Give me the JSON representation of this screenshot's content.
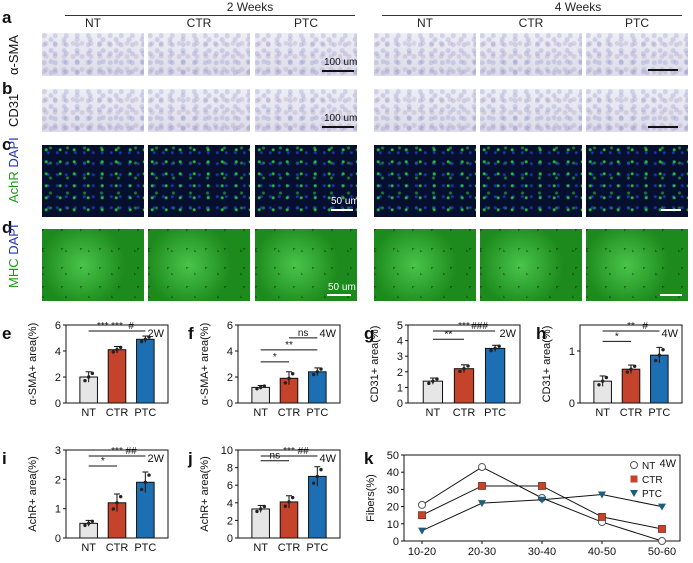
{
  "figure": {
    "panel_letters": [
      "a",
      "b",
      "c",
      "d",
      "e",
      "f",
      "g",
      "h",
      "i",
      "j",
      "k"
    ],
    "time_headers": [
      "2 Weeks",
      "4 Weeks"
    ],
    "group_headers": [
      "NT",
      "CTR",
      "PTC",
      "NT",
      "CTR",
      "PTC"
    ],
    "row_labels": {
      "a": "α-SMA",
      "b": "CD31",
      "c_green": "AchR",
      "c_blue": "DAPI",
      "d_green": "MHC",
      "d_blue": "DAPI"
    },
    "scale_bars": [
      "100 um",
      "100 um",
      "50 um",
      "50 um"
    ]
  },
  "chart_data": [
    {
      "panel": "e",
      "type": "bar",
      "tag": "2W",
      "ylabel": "α-SMA+ area(%)",
      "categories": [
        "NT",
        "CTR",
        "PTC"
      ],
      "values": [
        2.0,
        4.1,
        4.9
      ],
      "errors": [
        0.4,
        0.25,
        0.25
      ],
      "ylim": [
        0,
        6
      ],
      "yticks": [
        "0",
        "2",
        "4",
        "6"
      ],
      "colors": [
        "#e6e6e6",
        "#c4432a",
        "#1d6fb3"
      ],
      "significance": [
        {
          "from": 0,
          "to": 1,
          "label": "***"
        },
        {
          "from": 0,
          "to": 2,
          "label": "***"
        },
        {
          "from": 1,
          "to": 2,
          "label": "#"
        }
      ]
    },
    {
      "panel": "f",
      "type": "bar",
      "tag": "4W",
      "ylabel": "α-SMA+ area(%)",
      "categories": [
        "NT",
        "CTR",
        "PTC"
      ],
      "values": [
        1.2,
        1.9,
        2.4
      ],
      "errors": [
        0.15,
        0.5,
        0.3
      ],
      "ylim": [
        0,
        6
      ],
      "yticks": [
        "0",
        "2",
        "4",
        "6"
      ],
      "colors": [
        "#e6e6e6",
        "#c4432a",
        "#1d6fb3"
      ],
      "significance": [
        {
          "from": 0,
          "to": 1,
          "label": "*"
        },
        {
          "from": 0,
          "to": 2,
          "label": "**"
        },
        {
          "from": 1,
          "to": 2,
          "label": "ns"
        }
      ]
    },
    {
      "panel": "g",
      "type": "bar",
      "tag": "2W",
      "ylabel": "CD31+ area(%)",
      "categories": [
        "NT",
        "CTR",
        "PTC"
      ],
      "values": [
        1.4,
        2.2,
        3.5
      ],
      "errors": [
        0.2,
        0.25,
        0.2
      ],
      "ylim": [
        0,
        5
      ],
      "yticks": [
        "0",
        "1",
        "2",
        "3",
        "4",
        "5"
      ],
      "colors": [
        "#e6e6e6",
        "#c4432a",
        "#1d6fb3"
      ],
      "significance": [
        {
          "from": 0,
          "to": 1,
          "label": "**"
        },
        {
          "from": 0,
          "to": 2,
          "label": "***"
        },
        {
          "from": 1,
          "to": 2,
          "label": "###"
        }
      ]
    },
    {
      "panel": "h",
      "type": "bar",
      "tag": "4W",
      "ylabel": "CD31+ area(%)",
      "categories": [
        "NT",
        "CTR",
        "PTC"
      ],
      "values": [
        0.42,
        0.65,
        0.92
      ],
      "errors": [
        0.1,
        0.08,
        0.15
      ],
      "ylim": [
        0,
        1.5
      ],
      "yticks": [
        "0",
        "1"
      ],
      "colors": [
        "#e6e6e6",
        "#c4432a",
        "#1d6fb3"
      ],
      "significance": [
        {
          "from": 0,
          "to": 1,
          "label": "*"
        },
        {
          "from": 0,
          "to": 2,
          "label": "**"
        },
        {
          "from": 1,
          "to": 2,
          "label": "#"
        }
      ]
    },
    {
      "panel": "i",
      "type": "bar",
      "tag": "2W",
      "ylabel": "AchR+ area(%)",
      "categories": [
        "NT",
        "CTR",
        "PTC"
      ],
      "values": [
        0.5,
        1.2,
        1.9
      ],
      "errors": [
        0.1,
        0.3,
        0.35
      ],
      "ylim": [
        0,
        3
      ],
      "yticks": [
        "0",
        "1",
        "2",
        "3"
      ],
      "colors": [
        "#e6e6e6",
        "#c4432a",
        "#1d6fb3"
      ],
      "significance": [
        {
          "from": 0,
          "to": 1,
          "label": "*"
        },
        {
          "from": 0,
          "to": 2,
          "label": "***"
        },
        {
          "from": 1,
          "to": 2,
          "label": "##"
        }
      ]
    },
    {
      "panel": "j",
      "type": "bar",
      "tag": "4W",
      "ylabel": "AchR+ area(%)",
      "categories": [
        "NT",
        "CTR",
        "PTC"
      ],
      "values": [
        3.3,
        4.1,
        7.0
      ],
      "errors": [
        0.4,
        0.7,
        1.1
      ],
      "ylim": [
        0,
        10
      ],
      "yticks": [
        "0",
        "2",
        "4",
        "6",
        "8",
        "10"
      ],
      "colors": [
        "#e6e6e6",
        "#c4432a",
        "#1d6fb3"
      ],
      "significance": [
        {
          "from": 0,
          "to": 1,
          "label": "ns"
        },
        {
          "from": 0,
          "to": 2,
          "label": "***"
        },
        {
          "from": 1,
          "to": 2,
          "label": "##"
        }
      ]
    },
    {
      "panel": "k",
      "type": "line",
      "tag": "4W",
      "ylabel": "Fibers(%)",
      "categories": [
        "10-20",
        "20-30",
        "30-40",
        "40-50",
        "50-60"
      ],
      "ylim": [
        0,
        50
      ],
      "yticks": [
        "0",
        "10",
        "20",
        "30",
        "40",
        "50"
      ],
      "series": [
        {
          "name": "NT",
          "values": [
            21,
            43,
            25,
            11,
            0
          ],
          "color": "#888888",
          "marker": "circle"
        },
        {
          "name": "CTR",
          "values": [
            15,
            32,
            32,
            14,
            7
          ],
          "color": "#c4432a",
          "marker": "square"
        },
        {
          "name": "PTC",
          "values": [
            6,
            22,
            24,
            27,
            20
          ],
          "color": "#1d5f7a",
          "marker": "triangle"
        }
      ],
      "legend_position": "top-right"
    }
  ]
}
